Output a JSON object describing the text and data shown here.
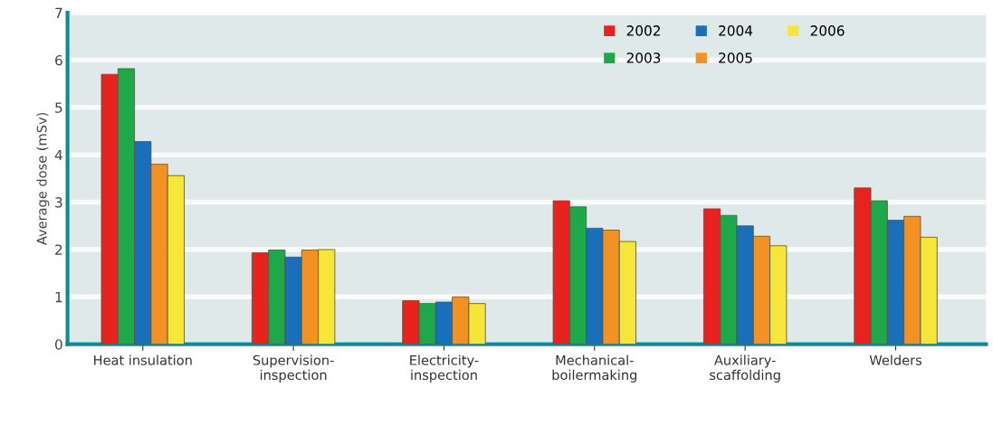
{
  "chart_data": {
    "type": "bar",
    "ylabel": "Average dose (mSv)",
    "categories": [
      "Heat insulation",
      "Supervision-\ninspection",
      "Electricity-\ninspection",
      "Mechanical-\nboilermaking",
      "Auxiliary-\nscaffolding",
      "Welders"
    ],
    "series": [
      {
        "name": "2002",
        "color": "#e8231f",
        "values": [
          5.7,
          1.93,
          0.92,
          3.03,
          2.86,
          3.3
        ]
      },
      {
        "name": "2003",
        "color": "#1fa84a",
        "values": [
          5.82,
          1.99,
          0.86,
          2.9,
          2.72,
          3.03
        ]
      },
      {
        "name": "2004",
        "color": "#1a6fba",
        "values": [
          4.28,
          1.84,
          0.89,
          2.45,
          2.5,
          2.62
        ]
      },
      {
        "name": "2005",
        "color": "#f39224",
        "values": [
          3.8,
          1.99,
          1.0,
          2.41,
          2.28,
          2.7
        ]
      },
      {
        "name": "2006",
        "color": "#f7e63a",
        "values": [
          3.56,
          2.0,
          0.86,
          2.17,
          2.08,
          2.26
        ]
      }
    ],
    "ylim": [
      0,
      7
    ],
    "yticks": [
      0,
      1,
      2,
      3,
      4,
      5,
      6,
      7
    ],
    "grid": "y",
    "legend": "top right"
  }
}
